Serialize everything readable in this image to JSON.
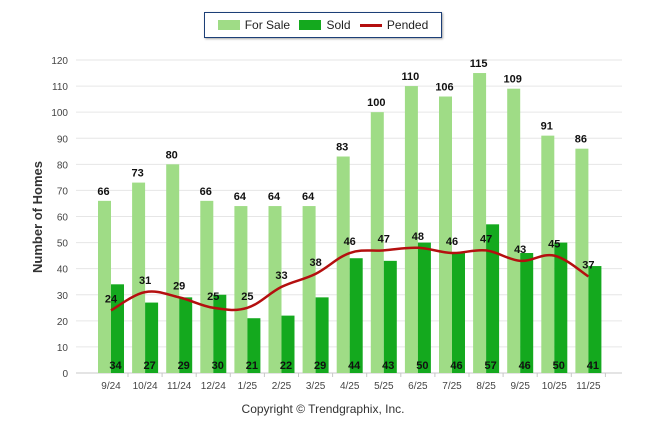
{
  "chart_data": {
    "type": "bar",
    "title": "",
    "xlabel": "",
    "ylabel": "Number of Homes",
    "ylim": [
      0,
      120
    ],
    "yticks": [
      0,
      10,
      20,
      30,
      40,
      50,
      60,
      70,
      80,
      90,
      100,
      110,
      120
    ],
    "categories": [
      "9/24",
      "10/24",
      "11/24",
      "12/24",
      "1/25",
      "2/25",
      "3/25",
      "4/25",
      "5/25",
      "6/25",
      "7/25",
      "8/25",
      "9/25",
      "10/25",
      "11/25"
    ],
    "series": [
      {
        "name": "For Sale",
        "type": "bar",
        "values": [
          66,
          73,
          80,
          66,
          64,
          64,
          64,
          83,
          100,
          110,
          106,
          115,
          109,
          91,
          86
        ]
      },
      {
        "name": "Sold",
        "type": "bar",
        "values": [
          34,
          27,
          29,
          30,
          21,
          22,
          29,
          44,
          43,
          50,
          46,
          57,
          46,
          50,
          41
        ]
      },
      {
        "name": "Pended",
        "type": "line",
        "values": [
          24,
          31,
          29,
          25,
          25,
          33,
          38,
          46,
          47,
          48,
          46,
          47,
          43,
          45,
          37
        ]
      }
    ],
    "legend_position": "top-center",
    "grid": true
  },
  "colors": {
    "for_sale": "#9fdc86",
    "sold": "#14a91e",
    "pended": "#b40f0f"
  },
  "copyright": "Copyright © Trendgraphix, Inc."
}
